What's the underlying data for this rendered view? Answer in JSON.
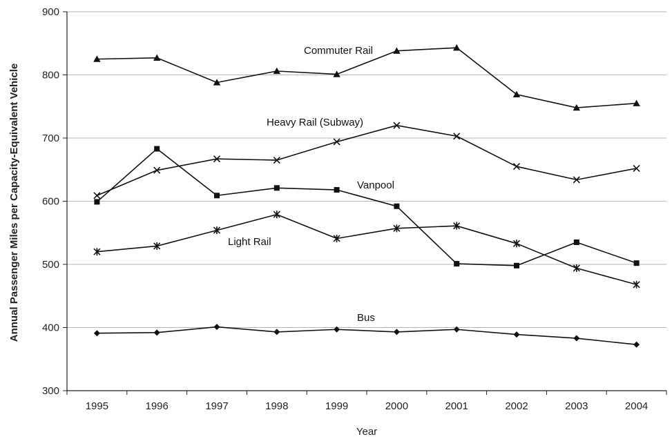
{
  "chart_data": {
    "type": "line",
    "xlabel": "Year",
    "ylabel": "Annual Passenger Miles per Capacity-Equivalent Vehicle",
    "ylim": [
      300,
      900
    ],
    "yticks": [
      300,
      400,
      500,
      600,
      700,
      800,
      900
    ],
    "categories": [
      "1995",
      "1996",
      "1997",
      "1998",
      "1999",
      "2000",
      "2001",
      "2002",
      "2003",
      "2004"
    ],
    "grid": "horizontal",
    "series": [
      {
        "name": "Commuter Rail",
        "marker": "triangle",
        "values": [
          825,
          827,
          788,
          806,
          801,
          838,
          843,
          769,
          748,
          755
        ]
      },
      {
        "name": "Heavy Rail (Subway)",
        "marker": "x",
        "values": [
          609,
          649,
          667,
          665,
          694,
          720,
          703,
          655,
          634,
          652
        ]
      },
      {
        "name": "Vanpool",
        "marker": "square",
        "values": [
          599,
          683,
          609,
          621,
          618,
          592,
          501,
          498,
          535,
          502
        ]
      },
      {
        "name": "Light Rail",
        "marker": "star",
        "values": [
          520,
          529,
          554,
          579,
          541,
          557,
          561,
          533,
          494,
          468
        ]
      },
      {
        "name": "Bus",
        "marker": "diamond",
        "values": [
          391,
          392,
          401,
          393,
          397,
          393,
          397,
          389,
          383,
          373
        ]
      }
    ]
  }
}
